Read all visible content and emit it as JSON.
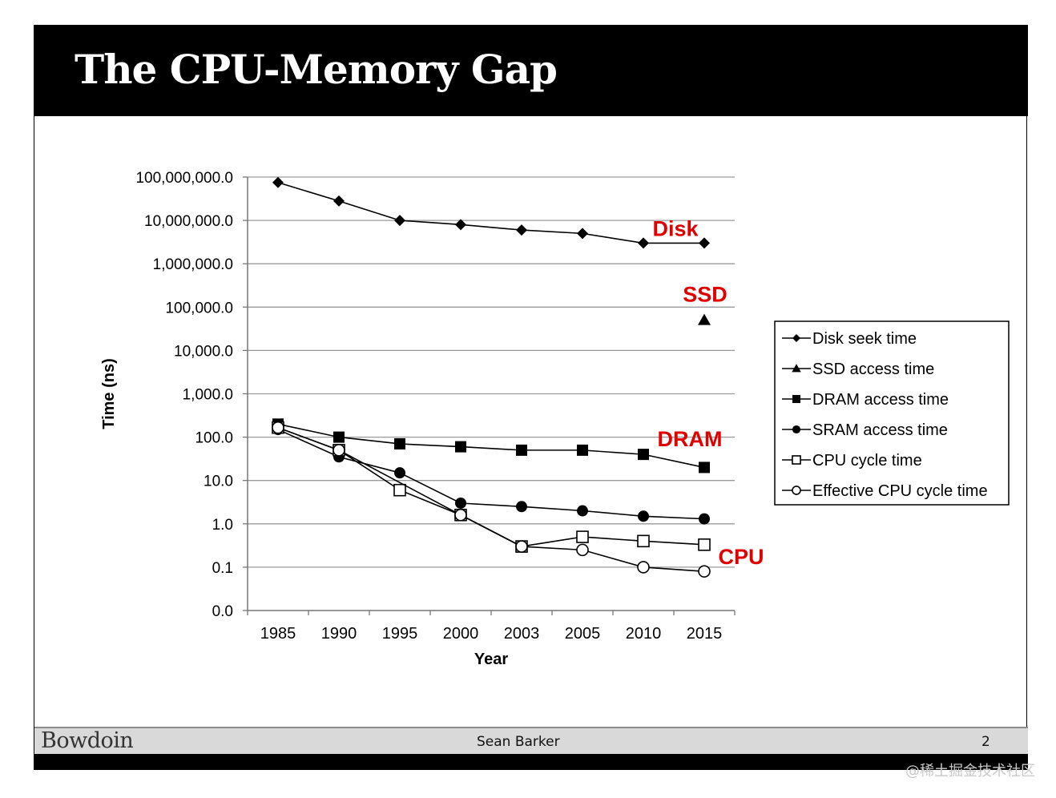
{
  "slide": {
    "title": "The CPU-Memory Gap",
    "footer_logo": "Bowdoin",
    "footer_author": "Sean Barker",
    "page_number": "2",
    "watermark": "@稀土掘金技术社区"
  },
  "colors": {
    "annotation": "#e10000",
    "line": "#000000"
  },
  "chart_data": {
    "type": "line",
    "y_scale": "log",
    "categories": [
      "1985",
      "1990",
      "1995",
      "2000",
      "2003",
      "2005",
      "2010",
      "2015"
    ],
    "ylabel": "Time (ns)",
    "xlabel": "Year",
    "ylim": [
      0.01,
      100000000
    ],
    "y_ticks": [
      0.01,
      0.1,
      1,
      10,
      100,
      1000,
      10000,
      100000,
      1000000,
      10000000,
      100000000
    ],
    "y_tick_labels": [
      "0.0",
      "0.1",
      "1.0",
      "10.0",
      "100.0",
      "1,000.0",
      "10,000.0",
      "100,000.0",
      "1,000,000.0",
      "10,000,000.0",
      "100,000,000.0"
    ],
    "grid": true,
    "legend_position": "right",
    "series": [
      {
        "name": "Disk seek time",
        "marker": "diamond",
        "values": [
          75000000,
          28000000,
          10000000,
          8000000,
          6000000,
          5000000,
          3000000,
          3000000
        ]
      },
      {
        "name": "SSD access time",
        "marker": "triangle",
        "values": [
          null,
          null,
          null,
          null,
          null,
          null,
          null,
          50000
        ]
      },
      {
        "name": "DRAM access time",
        "marker": "square-filled",
        "values": [
          200,
          100,
          70,
          60,
          50,
          50,
          40,
          20
        ]
      },
      {
        "name": "SRAM access time",
        "marker": "circle-filled",
        "values": [
          150,
          35,
          15,
          3,
          2.5,
          2,
          1.5,
          1.3
        ]
      },
      {
        "name": "CPU cycle time",
        "marker": "square-open",
        "values": [
          166,
          50,
          6,
          1.6,
          0.3,
          0.5,
          0.4,
          0.33
        ]
      },
      {
        "name": "Effective CPU cycle time",
        "marker": "circle-open",
        "values": [
          166,
          50,
          null,
          1.6,
          0.3,
          0.25,
          0.1,
          0.08
        ]
      }
    ],
    "annotations": [
      {
        "text": "Disk",
        "series": 0
      },
      {
        "text": "SSD",
        "series": 1
      },
      {
        "text": "DRAM",
        "series": 2
      },
      {
        "text": "CPU",
        "series": 4
      }
    ]
  }
}
